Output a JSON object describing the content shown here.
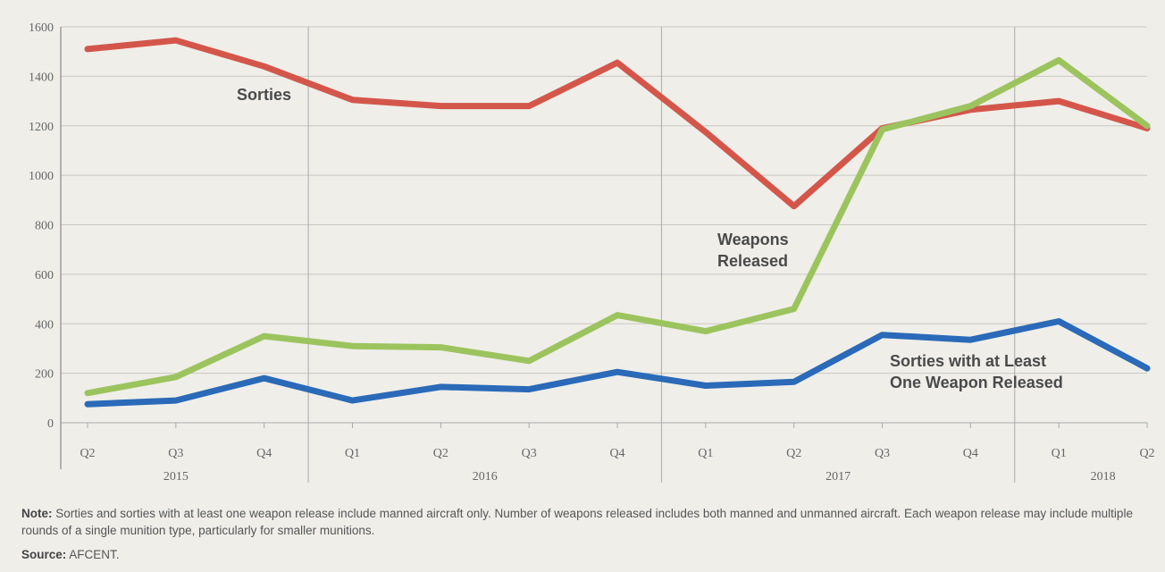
{
  "chart_data": {
    "type": "line",
    "x": [
      "Q2",
      "Q3",
      "Q4",
      "Q1",
      "Q2",
      "Q3",
      "Q4",
      "Q1",
      "Q2",
      "Q3",
      "Q4",
      "Q1",
      "Q2"
    ],
    "years": [
      {
        "label": "2015",
        "from": 0,
        "to": 2
      },
      {
        "label": "2016",
        "from": 3,
        "to": 6
      },
      {
        "label": "2017",
        "from": 7,
        "to": 10
      },
      {
        "label": "2018",
        "from": 11,
        "to": 12
      }
    ],
    "ylim": [
      0,
      1600
    ],
    "yticks": [
      0,
      200,
      400,
      600,
      800,
      1000,
      1200,
      1400,
      1600
    ],
    "grid": true,
    "series": [
      {
        "name": "Sorties",
        "color": "#d4564a",
        "values": [
          1510,
          1545,
          1440,
          1305,
          1280,
          1280,
          1455,
          1175,
          875,
          1190,
          1265,
          1300,
          1190
        ]
      },
      {
        "name": "Weapons Released",
        "color": "#9cc45e",
        "values": [
          120,
          185,
          350,
          310,
          305,
          250,
          435,
          370,
          460,
          1185,
          1280,
          1465,
          1200
        ]
      },
      {
        "name": "Sorties with at Least One Weapon Released",
        "color": "#2a6ab8",
        "values": [
          75,
          90,
          180,
          90,
          145,
          135,
          205,
          150,
          165,
          355,
          335,
          410,
          220
        ]
      }
    ],
    "labels": {
      "sorties": [
        "Sorties"
      ],
      "weapons": [
        "Weapons",
        "Released"
      ],
      "atleast": [
        "Sorties with at Least",
        "One Weapon Released"
      ]
    }
  },
  "note": {
    "label": "Note:",
    "text": " Sorties and sorties with at least one weapon release include manned aircraft only. Number of weapons released includes both manned and unmanned aircraft. Each weapon release may include multiple rounds of a single munition type, particularly for smaller munitions."
  },
  "source": {
    "label": "Source:",
    "text": " AFCENT."
  }
}
